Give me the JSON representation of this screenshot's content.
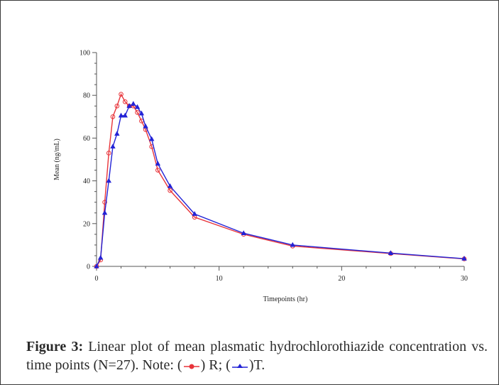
{
  "caption": {
    "label": "Figure 3:",
    "text": "Linear plot of mean plasmatic hydrochlorothiazide concentration vs. time points (N=27). Note: (",
    "series_r_label": ") R; (",
    "series_t_label": ")T."
  },
  "colors": {
    "R": "#e8343a",
    "T": "#2323d6",
    "axis": "#555555"
  },
  "chart_data": {
    "type": "line",
    "xlabel": "Timepoints (hr)",
    "ylabel": "Mean (ng/mL)",
    "xlim": [
      0,
      30
    ],
    "ylim": [
      0,
      100
    ],
    "xticks": [
      0,
      10,
      20,
      30
    ],
    "yticks": [
      0,
      20,
      40,
      60,
      80,
      100
    ],
    "grid": false,
    "series": [
      {
        "name": "R",
        "marker": "circle",
        "x": [
          0,
          0.33,
          0.67,
          1,
          1.33,
          1.67,
          2,
          2.33,
          2.67,
          3,
          3.33,
          3.67,
          4,
          4.5,
          5,
          6,
          8,
          12,
          16,
          24,
          30
        ],
        "y": [
          0,
          3,
          30,
          53,
          70,
          75,
          80.5,
          77,
          75,
          75,
          72,
          68,
          64,
          56,
          45,
          35.5,
          23,
          15,
          9.5,
          6,
          3.5
        ]
      },
      {
        "name": "T",
        "marker": "triangle",
        "x": [
          0,
          0.33,
          0.67,
          1,
          1.33,
          1.67,
          2,
          2.33,
          2.67,
          3,
          3.33,
          3.67,
          4,
          4.5,
          5,
          6,
          8,
          12,
          16,
          24,
          30
        ],
        "y": [
          0,
          4,
          25,
          40,
          56,
          62,
          70.5,
          70.5,
          75,
          76,
          74.5,
          71.5,
          65.5,
          59.5,
          48,
          37.5,
          24.5,
          15.5,
          10,
          6.2,
          3.6
        ]
      }
    ]
  }
}
